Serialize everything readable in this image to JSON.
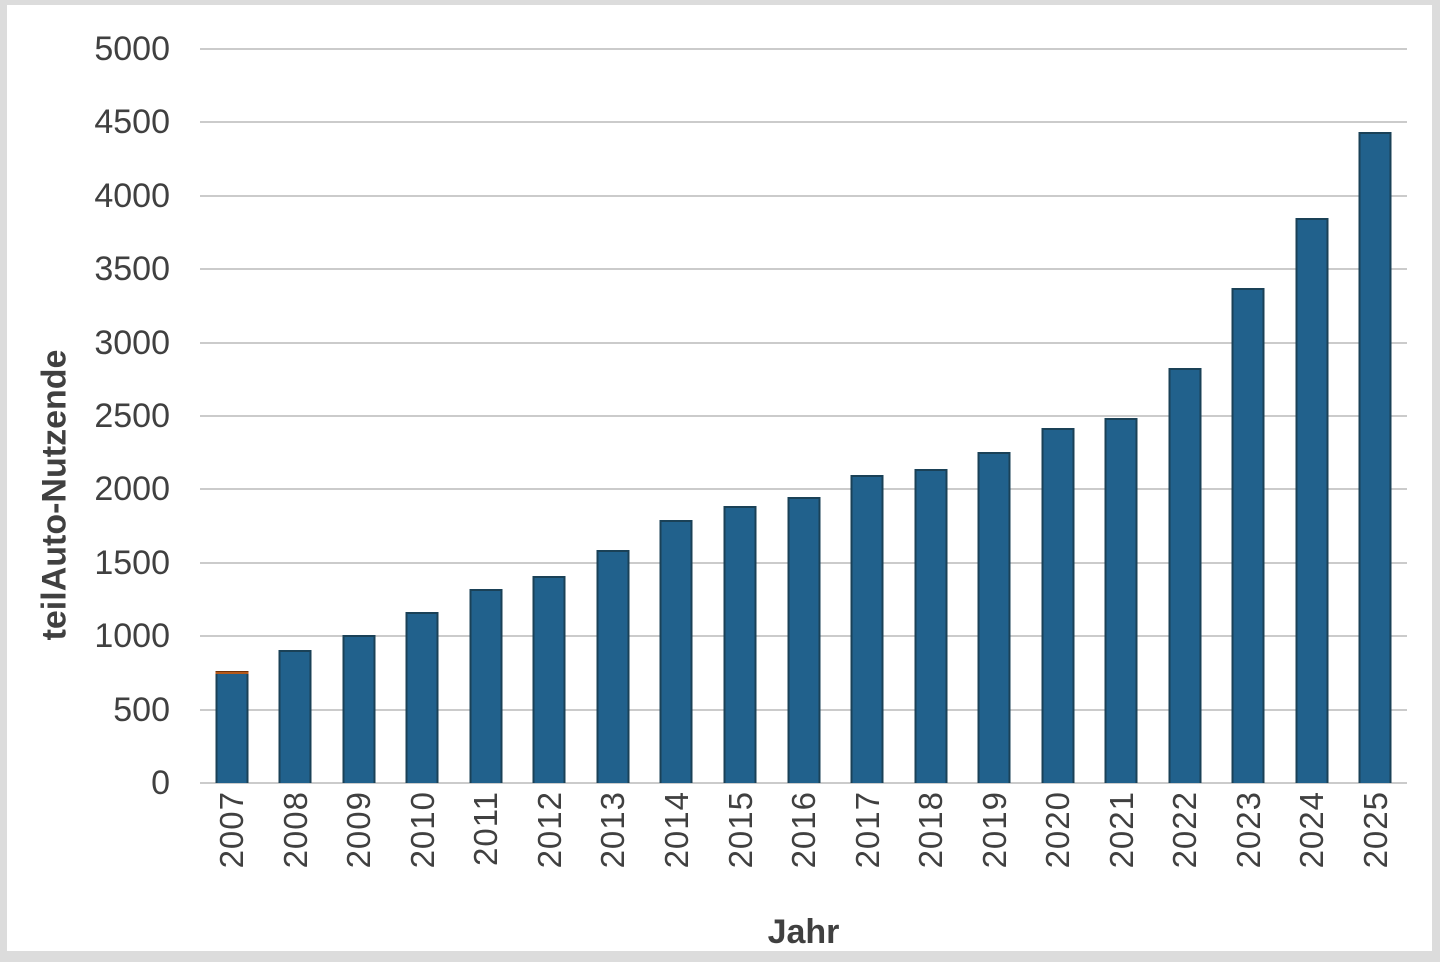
{
  "colors": {
    "bar_fill": "#21618C",
    "bar_border": "#1A4157",
    "orange_cap_fill": "#B4591B",
    "orange_cap_border": "#703208",
    "grid": "#CBCBCB",
    "text": "#404040",
    "frame": "#DCDCDC",
    "panel": "#FFFFFF"
  },
  "chart_data": {
    "type": "bar",
    "title": "",
    "xlabel": "Jahr",
    "ylabel": "teilAuto-Nutzende",
    "categories": [
      "2007",
      "2008",
      "2009",
      "2010",
      "2011",
      "2012",
      "2013",
      "2014",
      "2015",
      "2016",
      "2017",
      "2018",
      "2019",
      "2020",
      "2021",
      "2022",
      "2023",
      "2024",
      "2025"
    ],
    "series": [
      {
        "name": "teilAuto-Nutzende",
        "color_key": "bar_fill",
        "values": [
          740,
          905,
          1010,
          1165,
          1320,
          1410,
          1590,
          1795,
          1885,
          1950,
          2095,
          2140,
          2255,
          2415,
          2485,
          2830,
          3375,
          3850,
          4435
        ]
      },
      {
        "name": "orange-cap-segment",
        "color_key": "orange_cap_fill",
        "values": [
          20,
          0,
          0,
          0,
          0,
          0,
          0,
          0,
          0,
          0,
          0,
          0,
          0,
          0,
          0,
          0,
          0,
          0,
          0
        ]
      }
    ],
    "ylim": [
      0,
      5000
    ],
    "yticks": [
      0,
      500,
      1000,
      1500,
      2000,
      2500,
      3000,
      3500,
      4000,
      4500,
      5000
    ],
    "grid": true,
    "legend": "none"
  }
}
